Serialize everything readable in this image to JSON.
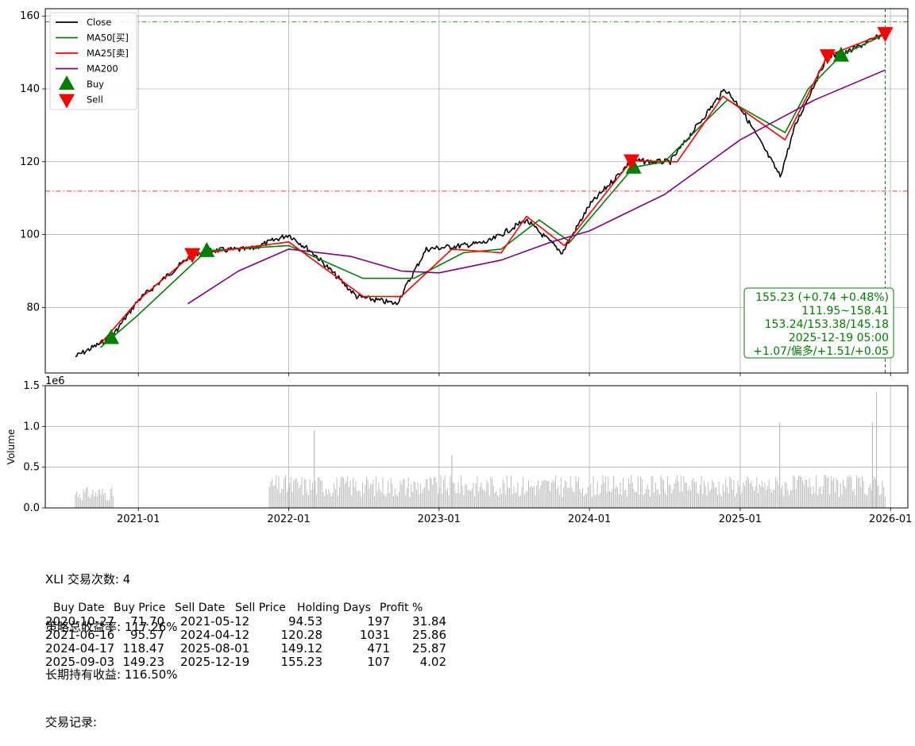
{
  "chart_data": [
    {
      "type": "line",
      "panel": "price",
      "ylim": [
        62,
        162
      ],
      "yticks": [
        80,
        100,
        120,
        140,
        160
      ],
      "xticks": [
        "2021-01",
        "2022-01",
        "2023-01",
        "2024-01",
        "2025-01",
        "2026-01"
      ],
      "grid": true,
      "legend_position": "top-left",
      "legend": [
        {
          "label": "Close",
          "color": "#000000",
          "kind": "line"
        },
        {
          "label": "MA50[买]",
          "color": "#008000",
          "kind": "line"
        },
        {
          "label": "MA25[卖]",
          "color": "#ff0000",
          "kind": "line"
        },
        {
          "label": "MA200",
          "color": "#800080",
          "kind": "line"
        },
        {
          "label": "Buy",
          "color": "#008000",
          "kind": "marker-up"
        },
        {
          "label": "Sell",
          "color": "#ff0000",
          "kind": "marker-down"
        }
      ],
      "series": [
        {
          "name": "Close",
          "color": "#000000",
          "x": [
            "2020-08-01",
            "2020-10-27",
            "2021-01-01",
            "2021-05-12",
            "2021-06-16",
            "2021-10-01",
            "2022-01-01",
            "2022-03-01",
            "2022-06-15",
            "2022-09-20",
            "2022-12-01",
            "2023-03-01",
            "2023-05-01",
            "2023-07-31",
            "2023-10-27",
            "2024-01-01",
            "2024-04-12",
            "2024-06-01",
            "2024-07-15",
            "2024-11-25",
            "2025-01-01",
            "2025-04-08",
            "2025-05-15",
            "2025-08-01",
            "2025-09-03",
            "2025-12-19"
          ],
          "values": [
            66.5,
            71.7,
            82,
            94.53,
            95.57,
            96,
            100,
            95,
            83,
            81,
            96,
            97,
            98,
            104,
            95,
            108,
            120.28,
            120,
            120,
            140,
            135,
            116,
            130,
            149.12,
            149.23,
            155.23
          ]
        },
        {
          "name": "MA50[买]",
          "color": "#008000",
          "x": [
            "2020-10-01",
            "2021-01-01",
            "2021-06-16",
            "2022-01-01",
            "2022-06-30",
            "2022-11-01",
            "2023-03-01",
            "2023-06-01",
            "2023-09-01",
            "2023-11-15",
            "2024-04-17",
            "2024-07-01",
            "2024-12-01",
            "2025-04-20",
            "2025-06-15",
            "2025-09-03",
            "2025-12-19"
          ],
          "values": [
            69,
            78,
            95.57,
            97,
            88,
            88,
            95,
            96,
            104,
            98,
            118.47,
            120,
            137,
            128,
            140,
            149.23,
            155
          ]
        },
        {
          "name": "MA25[卖]",
          "color": "#ff0000",
          "x": [
            "2020-10-01",
            "2021-01-01",
            "2021-05-12",
            "2022-01-01",
            "2022-07-01",
            "2022-10-01",
            "2023-02-01",
            "2023-06-01",
            "2023-08-01",
            "2023-11-01",
            "2024-04-12",
            "2024-08-01",
            "2024-11-20",
            "2025-04-20",
            "2025-08-01",
            "2025-12-19"
          ],
          "values": [
            70,
            82,
            94.53,
            98,
            83,
            83,
            96,
            95,
            105,
            97,
            120.28,
            120,
            138,
            126,
            149.12,
            155.23
          ]
        },
        {
          "name": "MA200",
          "color": "#800080",
          "x": [
            "2021-05-01",
            "2021-09-01",
            "2022-01-01",
            "2022-06-01",
            "2022-10-01",
            "2023-01-01",
            "2023-06-01",
            "2023-10-01",
            "2024-01-01",
            "2024-07-01",
            "2025-01-01",
            "2025-07-01",
            "2025-12-19"
          ],
          "values": [
            81,
            90,
            96,
            94,
            90,
            89.5,
            93,
            98,
            101,
            111,
            126,
            137,
            145.18
          ]
        }
      ],
      "markers": {
        "buy": [
          {
            "date": "2020-10-27",
            "price": 71.7
          },
          {
            "date": "2021-06-16",
            "price": 95.57
          },
          {
            "date": "2024-04-17",
            "price": 118.47
          },
          {
            "date": "2025-09-03",
            "price": 149.23
          }
        ],
        "sell": [
          {
            "date": "2021-05-12",
            "price": 94.53
          },
          {
            "date": "2024-04-12",
            "price": 120.28
          },
          {
            "date": "2025-08-01",
            "price": 149.12
          },
          {
            "date": "2025-12-19",
            "price": 155.23
          }
        ]
      },
      "hlines": [
        {
          "value": 158.41,
          "color": "#008000",
          "style": "dash-dot"
        },
        {
          "value": 111.95,
          "color": "#ff0000",
          "style": "dash-dot"
        }
      ],
      "vline": {
        "date": "2025-12-19",
        "color": "#008000",
        "style": "dashed"
      },
      "info_box": {
        "lines": [
          "155.23 (+0.74 +0.48%)",
          "111.95~158.41",
          "153.24/153.38/145.18",
          "2025-12-19 05:00",
          "+1.07/偏多/+1.51/+0.05"
        ],
        "color": "#008000"
      }
    },
    {
      "type": "bar",
      "panel": "volume",
      "ylabel": "Volume",
      "scale_label": "1e6",
      "ylim": [
        0,
        1.5
      ],
      "yticks": [
        "0.0",
        "0.5",
        "1.0",
        "1.5"
      ],
      "xticks": [
        "2021-01",
        "2022-01",
        "2023-01",
        "2024-01",
        "2025-01",
        "2026-01"
      ],
      "bar_color": "#bdbdbd",
      "volume_ranges": [
        {
          "from": "2020-08-01",
          "to": "2020-11-01",
          "level": 0.2
        },
        {
          "from": "2021-11-15",
          "to": "2025-12-19",
          "level": 0.3
        }
      ],
      "spikes": [
        {
          "date": "2022-03-04",
          "value": 0.95
        },
        {
          "date": "2023-02-01",
          "value": 0.65
        },
        {
          "date": "2025-04-07",
          "value": 1.05
        },
        {
          "date": "2025-11-28",
          "value": 1.42
        },
        {
          "date": "2025-11-18",
          "value": 1.05
        }
      ]
    }
  ],
  "summary": {
    "trades_line": "XLI 交易次数: 4",
    "strategy_return": "策略总收益率: 117.26%",
    "hold_return": "长期持有收益: 116.50%",
    "records_title": "交易记录:"
  },
  "trades": {
    "columns": [
      "Buy Date",
      "Buy Price",
      "Sell Date",
      "Sell Price",
      "Holding Days",
      "Profit %"
    ],
    "rows": [
      [
        "2020-10-27",
        "71.70",
        "2021-05-12",
        "94.53",
        "197",
        "31.84"
      ],
      [
        "2021-06-16",
        "95.57",
        "2024-04-12",
        "120.28",
        "1031",
        "25.86"
      ],
      [
        "2024-04-17",
        "118.47",
        "2025-08-01",
        "149.12",
        "471",
        "25.87"
      ],
      [
        "2025-09-03",
        "149.23",
        "2025-12-19",
        "155.23",
        "107",
        "4.02"
      ]
    ]
  }
}
